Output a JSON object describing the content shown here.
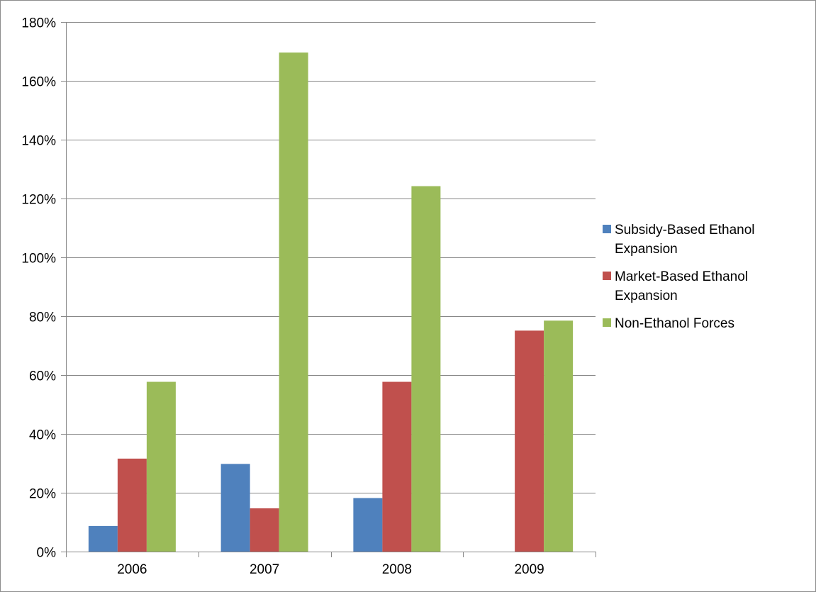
{
  "chart_data": {
    "type": "bar",
    "title": "",
    "xlabel": "",
    "ylabel": "",
    "categories": [
      "2006",
      "2007",
      "2008",
      "2009"
    ],
    "ylim": [
      0,
      180
    ],
    "ytick_step": 20,
    "ytick_suffix": "%",
    "grid": true,
    "legend_position": "right",
    "series": [
      {
        "name": "Subsidy-Based Ethanol Expansion",
        "legend_lines": [
          "Subsidy-Based Ethanol",
          "Expansion"
        ],
        "color": "#4f81bd",
        "values": [
          8.7,
          29.8,
          18.2,
          0
        ]
      },
      {
        "name": "Market-Based Ethanol Expansion",
        "legend_lines": [
          "Market-Based Ethanol",
          "Expansion"
        ],
        "color": "#c0504d",
        "values": [
          31.6,
          14.7,
          57.7,
          75.1
        ]
      },
      {
        "name": "Non-Ethanol Forces",
        "legend_lines": [
          "Non-Ethanol Forces"
        ],
        "color": "#9bbb59",
        "values": [
          57.7,
          169.6,
          124.2,
          78.5
        ]
      }
    ]
  }
}
